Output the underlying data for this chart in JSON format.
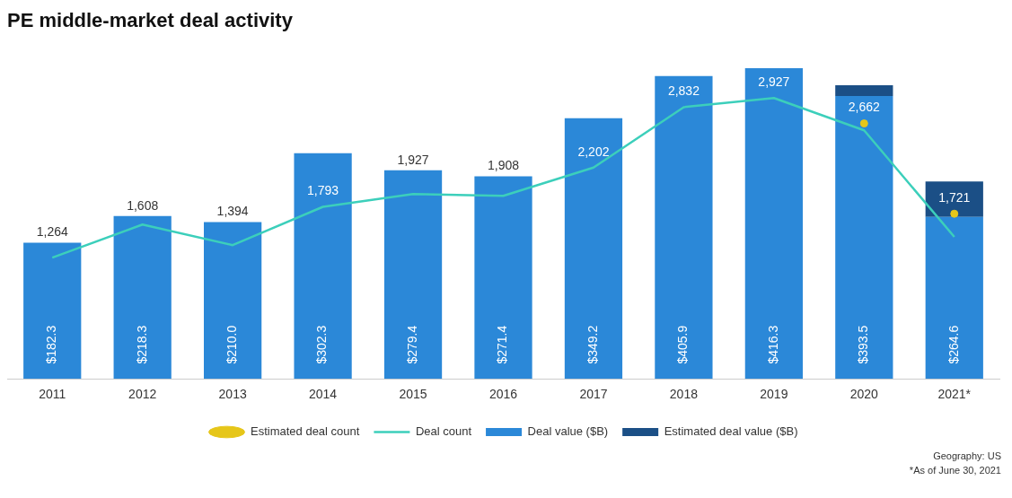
{
  "chart_data": {
    "type": "bar",
    "title": "PE middle-market deal activity",
    "categories": [
      "2011",
      "2012",
      "2013",
      "2014",
      "2015",
      "2016",
      "2017",
      "2018",
      "2019",
      "2020",
      "2021*"
    ],
    "stacked": true,
    "grid": false,
    "legend": "bottom",
    "tick_labels": "x",
    "series": [
      {
        "name": "Deal value ($B)",
        "color": "#2b88d8",
        "values": [
          182.3,
          218.3,
          210.0,
          302.3,
          279.4,
          271.4,
          349.2,
          405.9,
          416.3,
          379.0,
          217.0
        ],
        "value_labels": [
          "$182.3",
          "$218.3",
          "$210.0",
          "$302.3",
          "$279.4",
          "$271.4",
          "$349.2",
          "$405.9",
          "$416.3",
          null,
          null
        ]
      },
      {
        "name": "Estimated deal value ($B)",
        "color": "#1b4f86",
        "values": [
          null,
          null,
          null,
          null,
          null,
          null,
          null,
          null,
          null,
          14.5,
          47.6
        ]
      },
      {
        "name": "Deal count",
        "type": "line",
        "axis": "y2",
        "color": "#3ccfbb",
        "marker": "none",
        "line_style": "solid",
        "values": [
          1264,
          1608,
          1394,
          1793,
          1927,
          1908,
          2202,
          2832,
          2927,
          2590,
          1480
        ],
        "value_labels": [
          "1,264",
          "1,608",
          "1,394",
          "1,793",
          "1,927",
          "1,908",
          "2,202",
          "2,832",
          "2,927",
          null,
          null
        ]
      },
      {
        "name": "Estimated deal count",
        "type": "scatter",
        "axis": "y2",
        "color": "#e6c619",
        "marker": "circle",
        "values": [
          null,
          null,
          null,
          null,
          null,
          null,
          null,
          null,
          null,
          2662,
          1721
        ],
        "value_labels": [
          null,
          null,
          null,
          null,
          null,
          null,
          null,
          null,
          null,
          "2,662",
          "1,721"
        ]
      }
    ],
    "totals": [
      null,
      null,
      null,
      null,
      null,
      null,
      null,
      null,
      null,
      "$393.5",
      "$264.6"
    ],
    "annotations": [
      "Geography: US",
      "*As of June 30, 2021"
    ]
  }
}
